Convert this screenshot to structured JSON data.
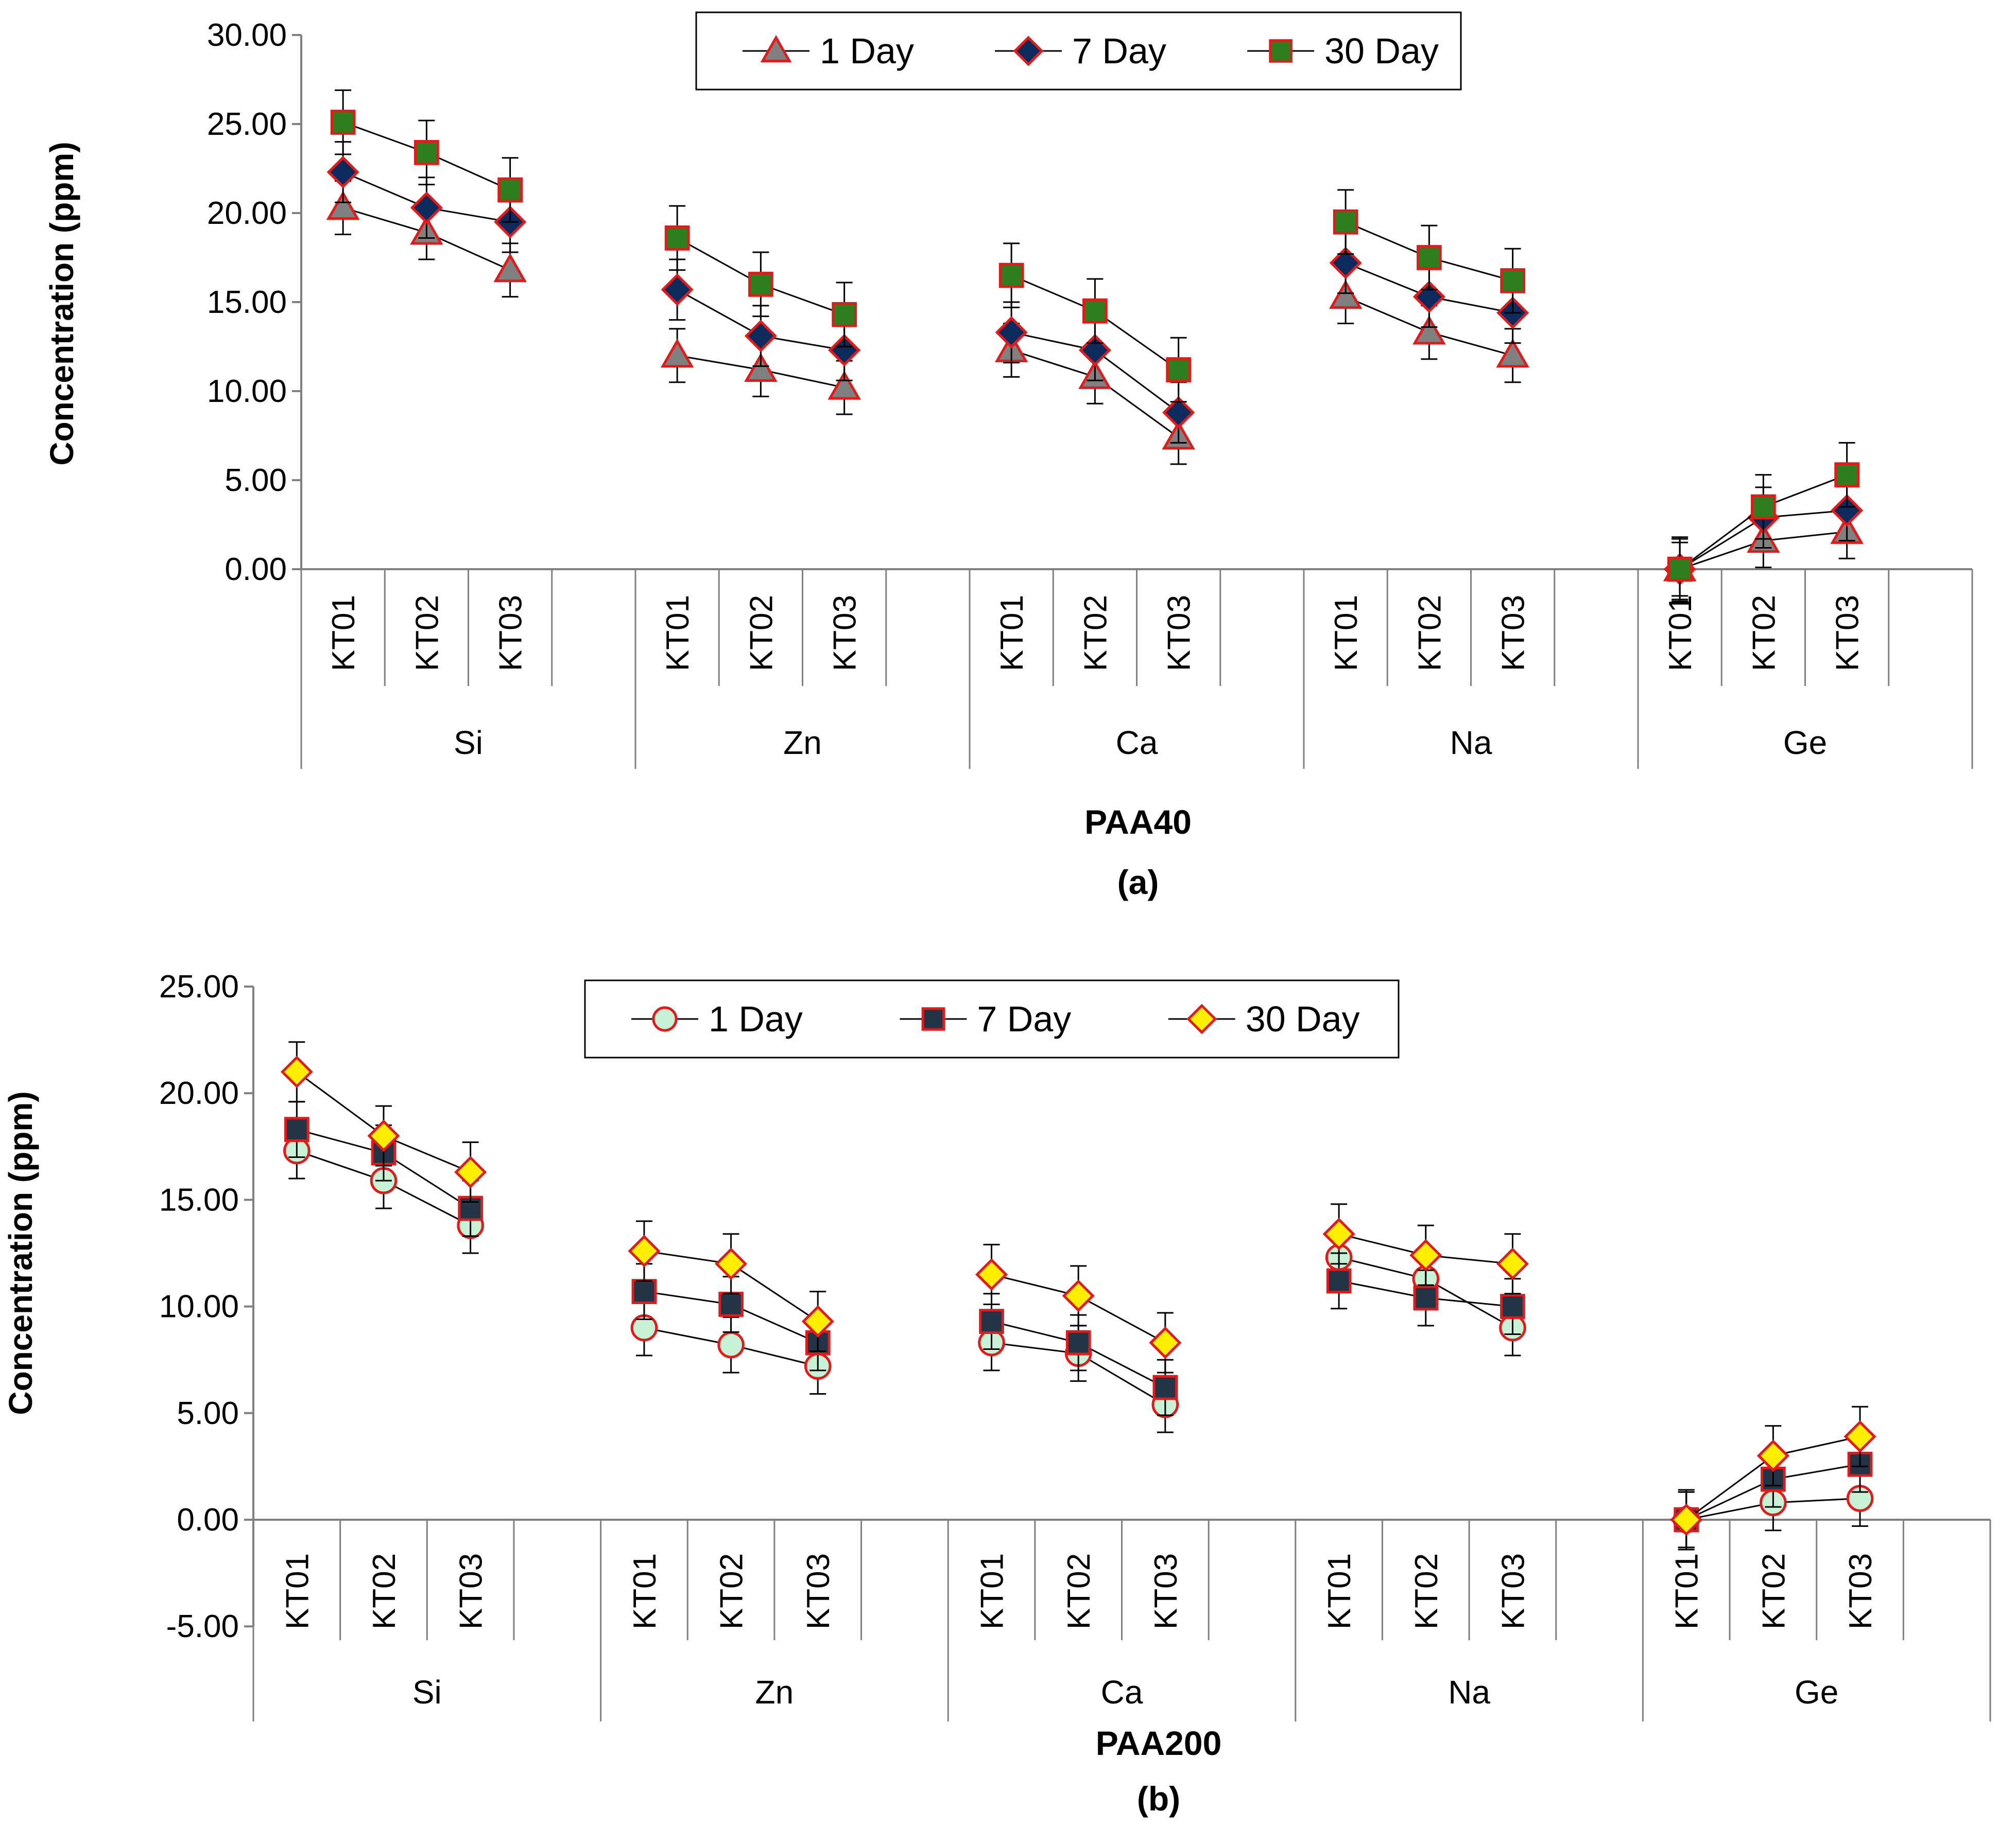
{
  "chart_data": [
    {
      "type": "line",
      "title": "PAA40",
      "caption": "(a)",
      "ylabel": "Concentration (ppm)",
      "ylim": [
        0,
        30
      ],
      "yticks": [
        "0.00",
        "5.00",
        "10.00",
        "15.00",
        "20.00",
        "25.00",
        "30.00"
      ],
      "groups": [
        "Si",
        "Zn",
        "Ca",
        "Na",
        "Ge"
      ],
      "categories": [
        "KT01",
        "KT02",
        "KT03"
      ],
      "legend_position": "top-center",
      "series": [
        {
          "name": "1 Day",
          "marker": "triangle",
          "fill": "#808080",
          "stroke": "#e21a1a",
          "values": [
            [
              20.3,
              18.9,
              16.8
            ],
            [
              12.0,
              11.2,
              10.2
            ],
            [
              12.3,
              10.8,
              7.4
            ],
            [
              15.3,
              13.3,
              12.0
            ],
            [
              0.0,
              1.6,
              2.1
            ]
          ],
          "errors": [
            1.5,
            1.5,
            1.5,
            1.5,
            1.5
          ]
        },
        {
          "name": "7 Day",
          "marker": "diamond",
          "fill": "#0d2a5c",
          "stroke": "#e21a1a",
          "values": [
            [
              22.3,
              20.3,
              19.5
            ],
            [
              15.7,
              13.1,
              12.3
            ],
            [
              13.3,
              12.3,
              8.8
            ],
            [
              17.2,
              15.3,
              14.4
            ],
            [
              0.0,
              2.9,
              3.3
            ]
          ],
          "errors": [
            1.7,
            1.7,
            1.7,
            1.7,
            1.7
          ]
        },
        {
          "name": "30 Day",
          "marker": "square",
          "fill": "#2e7d1f",
          "stroke": "#e21a1a",
          "values": [
            [
              25.1,
              23.4,
              21.3
            ],
            [
              18.6,
              16.0,
              14.3
            ],
            [
              16.5,
              14.5,
              11.2
            ],
            [
              19.5,
              17.5,
              16.2
            ],
            [
              0.0,
              3.5,
              5.3
            ]
          ],
          "errors": [
            1.8,
            1.8,
            1.8,
            1.8,
            1.8
          ]
        }
      ]
    },
    {
      "type": "line",
      "title": "PAA200",
      "caption": "(b)",
      "ylabel": "Concentration (ppm)",
      "ylim": [
        -5,
        25
      ],
      "yticks": [
        "-5.00",
        "0.00",
        "5.00",
        "10.00",
        "15.00",
        "20.00",
        "25.00"
      ],
      "groups": [
        "Si",
        "Zn",
        "Ca",
        "Na",
        "Ge"
      ],
      "categories": [
        "KT01",
        "KT02",
        "KT03"
      ],
      "legend_position": "top-center",
      "series": [
        {
          "name": "1 Day",
          "marker": "circle",
          "fill": "#c7f2d6",
          "stroke": "#e21a1a",
          "values": [
            [
              17.3,
              15.9,
              13.8
            ],
            [
              9.0,
              8.2,
              7.2
            ],
            [
              8.3,
              7.8,
              5.4
            ],
            [
              12.3,
              11.3,
              9.0
            ],
            [
              0.0,
              0.8,
              1.0
            ]
          ],
          "errors": [
            1.3,
            1.3,
            1.3,
            1.3,
            1.3
          ]
        },
        {
          "name": "7 Day",
          "marker": "square",
          "fill": "#243447",
          "stroke": "#e21a1a",
          "values": [
            [
              18.3,
              17.2,
              14.6
            ],
            [
              10.7,
              10.1,
              8.3
            ],
            [
              9.3,
              8.3,
              6.2
            ],
            [
              11.2,
              10.4,
              10.0
            ],
            [
              0.0,
              1.9,
              2.6
            ]
          ],
          "errors": [
            1.3,
            1.3,
            1.3,
            1.3,
            1.3
          ]
        },
        {
          "name": "30 Day",
          "marker": "diamond",
          "fill": "#ffee00",
          "stroke": "#e21a1a",
          "values": [
            [
              21.0,
              18.0,
              16.3
            ],
            [
              12.6,
              12.0,
              9.3
            ],
            [
              11.5,
              10.5,
              8.3
            ],
            [
              13.4,
              12.4,
              12.0
            ],
            [
              0.0,
              3.0,
              3.9
            ]
          ],
          "errors": [
            1.4,
            1.4,
            1.4,
            1.4,
            1.4
          ]
        }
      ]
    }
  ]
}
